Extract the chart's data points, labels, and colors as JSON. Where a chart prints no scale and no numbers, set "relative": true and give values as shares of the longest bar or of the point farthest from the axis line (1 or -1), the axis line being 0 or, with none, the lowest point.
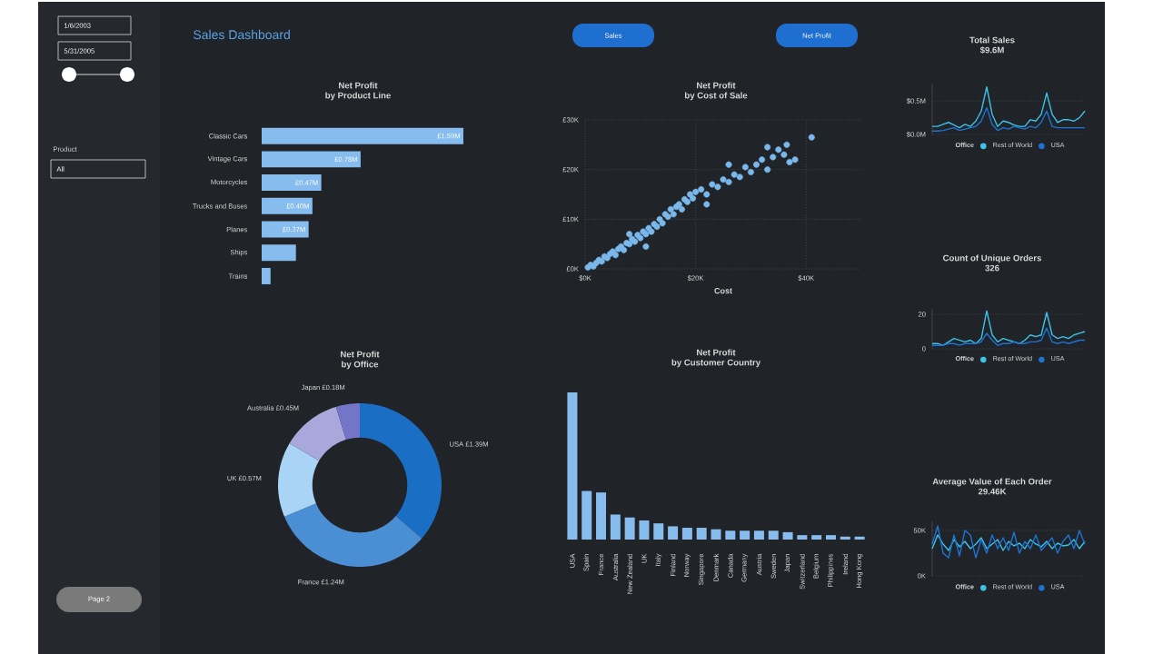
{
  "chart_data": [
    {
      "type": "other",
      "title": "Sales Dashboard",
      "annotations": [
        "1/6/2003",
        "5/31/2005",
        "Product",
        "All",
        "Sales",
        "Net Profit",
        "Page 2"
      ]
    },
    {
      "type": "bar",
      "orientation": "horizontal",
      "title": "Net Profit",
      "subtitle": "by Product Line",
      "categories": [
        "Classic Cars",
        "Vintage Cars",
        "Motorcycles",
        "Trucks and Buses",
        "Planes",
        "Ships",
        "Trains"
      ],
      "values": [
        1.59,
        0.78,
        0.47,
        0.4,
        0.37,
        0.27,
        0.07
      ],
      "value_labels": [
        "£1.59M",
        "£0.78M",
        "£0.47M",
        "£0.40M",
        "£0.37M",
        null,
        null
      ],
      "color": "#86bdee"
    },
    {
      "type": "scatter",
      "title": "Net Profit",
      "subtitle": "by Cost of Sale",
      "xlabel": "Cost",
      "marker": "circle",
      "grid": true,
      "color": "#7ab8ec",
      "x": [
        0.5,
        1,
        1.5,
        2,
        2.5,
        3,
        3.5,
        4,
        4.5,
        5,
        5.5,
        6,
        6.5,
        7,
        7.5,
        8,
        8.5,
        9,
        9.5,
        10,
        10.5,
        11,
        11.5,
        12,
        12.5,
        13,
        13.5,
        14,
        14.5,
        15,
        15.5,
        16,
        16.5,
        17,
        17.5,
        18,
        18.5,
        19,
        19.5,
        20,
        21,
        22,
        23,
        24,
        25,
        26,
        27,
        28,
        29,
        30,
        31,
        32,
        33,
        34,
        35,
        36,
        36.5,
        37,
        38,
        41,
        11,
        8,
        22,
        33,
        26
      ],
      "values": [
        0.3,
        0.8,
        0.5,
        1.2,
        1.8,
        1.5,
        2.5,
        2.2,
        3,
        3.5,
        2.8,
        4,
        4.5,
        3.8,
        5.2,
        5,
        6,
        5.5,
        6.8,
        6.2,
        7.5,
        7,
        8.2,
        7.5,
        9,
        8.5,
        10,
        9.2,
        11,
        10.5,
        12,
        11,
        12.5,
        13,
        12,
        14,
        13.5,
        15,
        14.2,
        15.5,
        16,
        15,
        17,
        16.5,
        18,
        17.5,
        19,
        18.5,
        20.5,
        19.5,
        21,
        22,
        20,
        22.5,
        24,
        23,
        25,
        21.5,
        22,
        26.5,
        4.5,
        7,
        13,
        24.5,
        21
      ],
      "xlim": [
        0,
        50
      ],
      "ylim": [
        0,
        30
      ],
      "xticks": [
        {
          "value": 0,
          "label": "$0K"
        },
        {
          "value": 20,
          "label": "$20K"
        },
        {
          "value": 40,
          "label": "$40K"
        }
      ],
      "yticks": [
        {
          "value": 0,
          "label": "£0K"
        },
        {
          "value": 10,
          "label": "£10K"
        },
        {
          "value": 20,
          "label": "£20K"
        },
        {
          "value": 30,
          "label": "£30K"
        }
      ]
    },
    {
      "type": "line",
      "title": "Total Sales",
      "subtitle": "$9.6M",
      "legend_title": "Office",
      "legend": "bottom",
      "grid": "y",
      "categories": [
        null,
        null,
        null,
        null,
        null,
        null,
        null,
        null,
        null,
        null,
        null,
        null,
        null,
        null,
        null,
        null,
        null,
        null,
        null,
        null,
        null,
        null,
        null,
        null,
        null,
        null,
        null,
        null,
        null
      ],
      "ylim": [
        0,
        0.75
      ],
      "yticks": [
        {
          "value": 0,
          "label": "$0.0M"
        },
        {
          "value": 0.5,
          "label": "$0.5M"
        }
      ],
      "series": [
        {
          "name": "Rest of World",
          "color": "#3cc3e8",
          "values": [
            0.12,
            0.12,
            0.15,
            0.18,
            0.14,
            0.1,
            0.15,
            0.12,
            0.2,
            0.35,
            0.71,
            0.3,
            0.12,
            0.2,
            0.18,
            0.14,
            0.12,
            0.12,
            0.22,
            0.2,
            0.3,
            0.62,
            0.3,
            0.18,
            0.22,
            0.22,
            0.2,
            0.25,
            0.35
          ]
        },
        {
          "name": "USA",
          "color": "#1e73d2",
          "values": [
            0.05,
            0.05,
            0.06,
            0.08,
            0.1,
            0.06,
            0.08,
            0.1,
            0.12,
            0.2,
            0.4,
            0.15,
            0.06,
            0.1,
            0.08,
            0.12,
            0.1,
            0.08,
            0.12,
            0.1,
            0.18,
            0.35,
            0.12,
            0.1,
            0.1,
            0.1,
            0.1,
            0.1,
            0.1
          ]
        }
      ]
    },
    {
      "type": "donut",
      "title": "Net Profit",
      "subtitle": "by Office",
      "categories": [
        "USA",
        "France",
        "UK",
        "Australia",
        "Japan"
      ],
      "values": [
        1.39,
        1.24,
        0.57,
        0.45,
        0.18
      ],
      "value_labels": [
        "£1.39M",
        "£1.24M",
        "£0.57M",
        "£0.45M",
        "£0.18M"
      ],
      "colors": [
        "#1a6fc4",
        "#4a8fd4",
        "#a9d4f5",
        "#a8a8dc",
        "#7474c8"
      ]
    },
    {
      "type": "bar",
      "relative": true,
      "title": "Net Profit",
      "subtitle": "by Customer Country",
      "color": "#86bdee",
      "categories": [
        "USA",
        "Spain",
        "France",
        "Australia",
        "New Zealand",
        "UK",
        "Italy",
        "Finland",
        "Norway",
        "Singapore",
        "Denmark",
        "Canada",
        "Germany",
        "Austria",
        "Sweden",
        "Japan",
        "Switzerland",
        "Belgium",
        "Philippines",
        "Ireland",
        "Hong Kong"
      ],
      "values": [
        1,
        0.33,
        0.32,
        0.17,
        0.15,
        0.13,
        0.11,
        0.09,
        0.08,
        0.08,
        0.07,
        0.06,
        0.06,
        0.06,
        0.06,
        0.05,
        0.03,
        0.03,
        0.03,
        0.02,
        0.02
      ]
    },
    {
      "type": "line",
      "title": "Count of Unique Orders",
      "subtitle": "326",
      "legend_title": "Office",
      "legend": "bottom",
      "grid": "y",
      "categories": [
        null,
        null,
        null,
        null,
        null,
        null,
        null,
        null,
        null,
        null,
        null,
        null,
        null,
        null,
        null,
        null,
        null,
        null,
        null,
        null,
        null,
        null,
        null,
        null,
        null,
        null,
        null,
        null,
        null
      ],
      "ylim": [
        0,
        23
      ],
      "yticks": [
        0,
        20
      ],
      "series": [
        {
          "name": "Rest of World",
          "color": "#3cc3e8",
          "values": [
            3,
            3,
            2,
            4,
            6,
            5,
            4,
            5,
            3,
            6,
            22,
            8,
            4,
            6,
            5,
            4,
            3,
            5,
            8,
            7,
            8,
            21,
            8,
            6,
            7,
            6,
            8,
            9,
            10
          ]
        },
        {
          "name": "USA",
          "color": "#1e73d2",
          "values": [
            2,
            2,
            2,
            3,
            3,
            2,
            3,
            3,
            3,
            4,
            9,
            5,
            2,
            3,
            3,
            4,
            3,
            3,
            4,
            4,
            5,
            12,
            4,
            3,
            4,
            3,
            4,
            5,
            5
          ]
        }
      ]
    },
    {
      "type": "line",
      "title": "Average Value of Each Order",
      "subtitle": "29.46K",
      "legend_title": "Office",
      "legend": "bottom",
      "grid": "y",
      "categories": [
        null,
        null,
        null,
        null,
        null,
        null,
        null,
        null,
        null,
        null,
        null,
        null,
        null,
        null,
        null,
        null,
        null,
        null,
        null,
        null,
        null,
        null,
        null,
        null,
        null,
        null,
        null,
        null,
        null
      ],
      "ylim": [
        0,
        60
      ],
      "yticks": [
        {
          "value": 0,
          "label": "0K"
        },
        {
          "value": 50,
          "label": "50K"
        }
      ],
      "series": [
        {
          "name": "Rest of World",
          "color": "#3cc3e8",
          "values": [
            30,
            45,
            35,
            28,
            40,
            32,
            38,
            30,
            35,
            42,
            30,
            35,
            40,
            28,
            38,
            33,
            36,
            30,
            40,
            35,
            32,
            38,
            30,
            36,
            33,
            34,
            40,
            30,
            38
          ]
        },
        {
          "name": "USA",
          "color": "#1e73d2",
          "values": [
            35,
            55,
            25,
            20,
            45,
            22,
            50,
            45,
            20,
            40,
            25,
            45,
            30,
            42,
            28,
            48,
            25,
            38,
            30,
            45,
            28,
            35,
            42,
            25,
            38,
            45,
            30,
            50,
            35
          ]
        }
      ]
    }
  ]
}
